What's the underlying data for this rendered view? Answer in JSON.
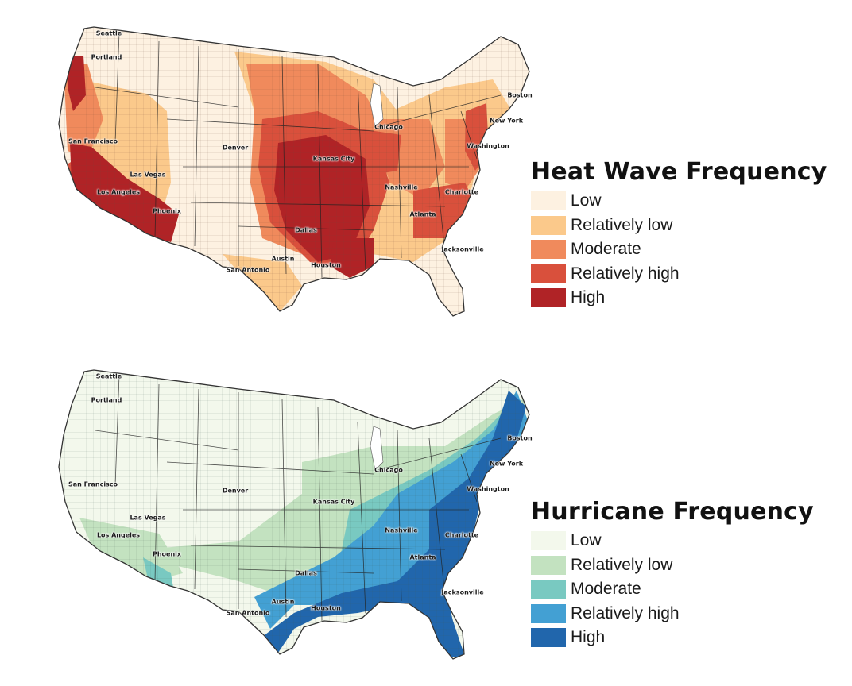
{
  "heat_map": {
    "title": "Heat Wave Frequency",
    "legend": [
      {
        "label": "Low",
        "color": "#fdf1e1"
      },
      {
        "label": "Relatively low",
        "color": "#fbc98b"
      },
      {
        "label": "Moderate",
        "color": "#f08a5c"
      },
      {
        "label": "Relatively high",
        "color": "#d9503c"
      },
      {
        "label": "High",
        "color": "#b02326"
      }
    ]
  },
  "hurricane_map": {
    "title": "Hurricane Frequency",
    "legend": [
      {
        "label": "Low",
        "color": "#f3f8ec"
      },
      {
        "label": "Relatively low",
        "color": "#c3e2c0"
      },
      {
        "label": "Moderate",
        "color": "#79c9c1"
      },
      {
        "label": "Relatively high",
        "color": "#43a0d3"
      },
      {
        "label": "High",
        "color": "#2166ac"
      }
    ]
  },
  "cities": [
    {
      "name": "Seattle"
    },
    {
      "name": "Portland"
    },
    {
      "name": "San Francisco"
    },
    {
      "name": "Las Vegas"
    },
    {
      "name": "Los Angeles"
    },
    {
      "name": "Phoenix"
    },
    {
      "name": "Denver"
    },
    {
      "name": "Kansas City"
    },
    {
      "name": "Dallas"
    },
    {
      "name": "Austin"
    },
    {
      "name": "Houston"
    },
    {
      "name": "San Antonio"
    },
    {
      "name": "Chicago"
    },
    {
      "name": "Nashville"
    },
    {
      "name": "Atlanta"
    },
    {
      "name": "Charlotte"
    },
    {
      "name": "Jacksonville"
    },
    {
      "name": "Washington"
    },
    {
      "name": "New York"
    },
    {
      "name": "Boston"
    }
  ]
}
